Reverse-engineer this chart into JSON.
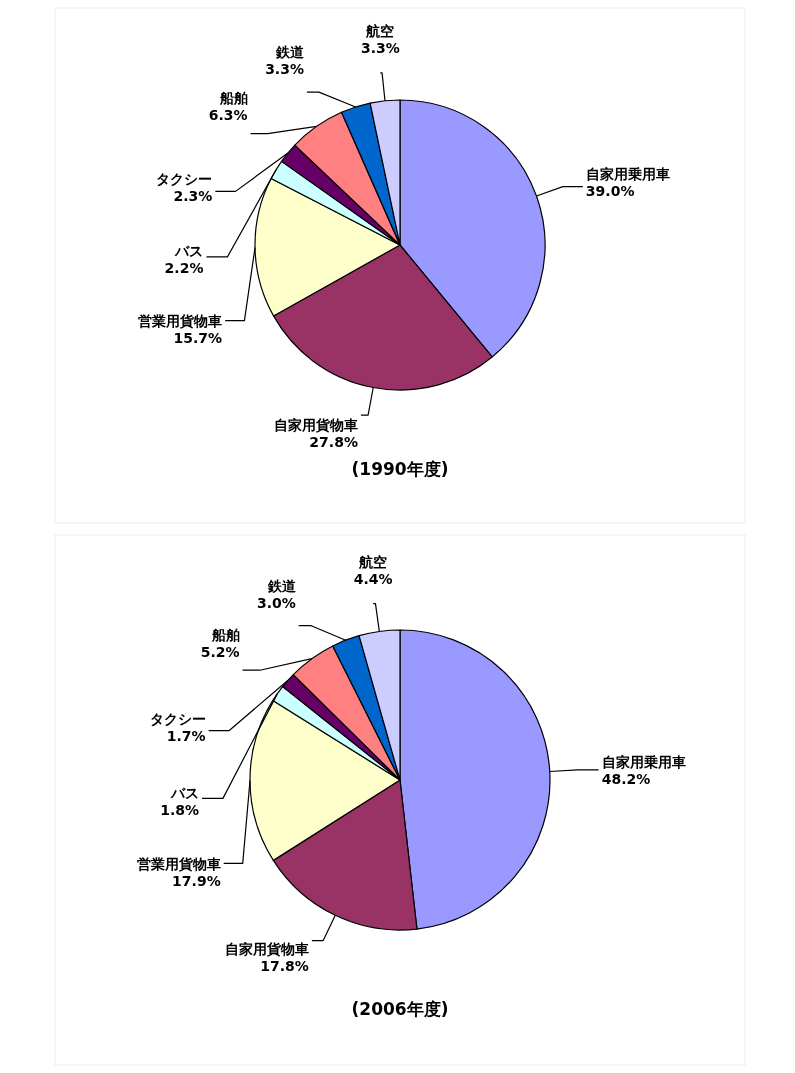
{
  "chart_data": [
    {
      "type": "pie",
      "title": "(1990年度)",
      "categories": [
        "自家用乗用車",
        "自家用貨物車",
        "営業用貨物車",
        "バス",
        "タクシー",
        "船舶",
        "鉄道",
        "航空"
      ],
      "values": [
        39.0,
        27.8,
        15.7,
        2.2,
        2.3,
        6.3,
        3.3,
        3.3
      ],
      "value_labels": [
        "39.0%",
        "27.8%",
        "15.7%",
        "2.2%",
        "2.3%",
        "6.3%",
        "3.3%",
        "3.3%"
      ],
      "colors": [
        "#9999ff",
        "#993366",
        "#ffffcc",
        "#ccffff",
        "#660066",
        "#ff8080",
        "#0066cc",
        "#ccccff"
      ]
    },
    {
      "type": "pie",
      "title": "(2006年度)",
      "categories": [
        "自家用乗用車",
        "自家用貨物車",
        "営業用貨物車",
        "バス",
        "タクシー",
        "船舶",
        "鉄道",
        "航空"
      ],
      "values": [
        48.2,
        17.8,
        17.9,
        1.8,
        1.7,
        5.2,
        3.0,
        4.4
      ],
      "value_labels": [
        "48.2%",
        "17.8%",
        "17.9%",
        "1.8%",
        "1.7%",
        "5.2%",
        "3.0%",
        "4.4%"
      ],
      "colors": [
        "#9999ff",
        "#993366",
        "#ffffcc",
        "#ccffff",
        "#660066",
        "#ff8080",
        "#0066cc",
        "#ccccff"
      ]
    }
  ]
}
